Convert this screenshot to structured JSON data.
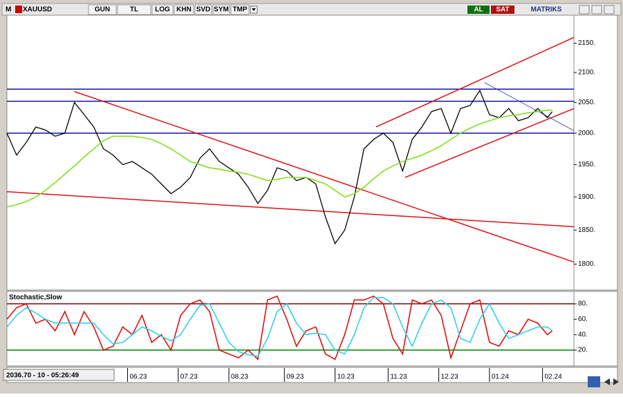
{
  "toolbar": {
    "logo": "M",
    "symbol": "XAUUSD",
    "buttons": [
      "GUN",
      "TL",
      "LOG",
      "KHN",
      "SVD",
      "SYM",
      "TMP"
    ],
    "buy": "AL",
    "sell": "SAT",
    "brand": "MATRIKS"
  },
  "status": "2036.70 - 10 - 05:26:49",
  "chart_data": [
    {
      "type": "line",
      "log_scale": true,
      "x": [
        0,
        4,
        8,
        12,
        16,
        20,
        24,
        28,
        32,
        36,
        40,
        44,
        48,
        52,
        56,
        60,
        64,
        68,
        72,
        76,
        80,
        84,
        88,
        92,
        96,
        100,
        104,
        108,
        112,
        116,
        120,
        124,
        128,
        132,
        136,
        140,
        144,
        148,
        152,
        156,
        160,
        164,
        168,
        172,
        176,
        180,
        184,
        188,
        192,
        196,
        200,
        204,
        208,
        212,
        216,
        220,
        224,
        226
      ],
      "xlim": [
        0,
        235
      ],
      "xticks": [
        {
          "value": 50,
          "label": "06.23"
        },
        {
          "value": 71,
          "label": "07.23"
        },
        {
          "value": 92,
          "label": "08.23"
        },
        {
          "value": 115,
          "label": "09.23"
        },
        {
          "value": 136,
          "label": "10.23"
        },
        {
          "value": 158,
          "label": "11.23"
        },
        {
          "value": 179,
          "label": "12.23"
        },
        {
          "value": 200,
          "label": "01.24"
        },
        {
          "value": 222,
          "label": "02.24"
        }
      ],
      "ylim": [
        1763,
        2199
      ],
      "yticks": [
        {
          "value": 1800,
          "label": "1800."
        },
        {
          "value": 1850,
          "label": "1850."
        },
        {
          "value": 1900,
          "label": "1900."
        },
        {
          "value": 1950,
          "label": "1950."
        },
        {
          "value": 2000,
          "label": "2000."
        },
        {
          "value": 2050,
          "label": "2050."
        },
        {
          "value": 2100,
          "label": "2100."
        },
        {
          "value": 2150,
          "label": "2150."
        }
      ],
      "series": [
        {
          "color": "#000000",
          "values": [
            2000,
            1965,
            1985,
            2010,
            2005,
            1995,
            2000,
            2050,
            2030,
            2010,
            1975,
            1965,
            1950,
            1955,
            1945,
            1935,
            1920,
            1905,
            1915,
            1930,
            1960,
            1975,
            1955,
            1945,
            1935,
            1915,
            1890,
            1910,
            1945,
            1940,
            1925,
            1930,
            1920,
            1870,
            1830,
            1850,
            1900,
            1975,
            1990,
            2000,
            1985,
            1940,
            1990,
            2010,
            2035,
            2040,
            2000,
            2040,
            2045,
            2070,
            2030,
            2025,
            2040,
            2020,
            2025,
            2040,
            2025,
            2035
          ]
        },
        {
          "color": "#7fe020",
          "values": [
            1885,
            1888,
            1893,
            1900,
            1910,
            1922,
            1935,
            1948,
            1962,
            1975,
            1988,
            1995,
            1995,
            1995,
            1993,
            1990,
            1983,
            1975,
            1965,
            1955,
            1950,
            1945,
            1943,
            1940,
            1938,
            1935,
            1930,
            1925,
            1927,
            1930,
            1930,
            1930,
            1925,
            1920,
            1910,
            1900,
            1905,
            1915,
            1928,
            1940,
            1948,
            1955,
            1960,
            1965,
            1972,
            1980,
            1990,
            2000,
            2008,
            2015,
            2020,
            2025,
            2028,
            2030,
            2033,
            2035,
            2037,
            2038
          ]
        }
      ],
      "levels": [
        {
          "value": 2072,
          "color": "#1010a0"
        },
        {
          "value": 2052,
          "color": "#1010a0"
        },
        {
          "value": 2000,
          "color": "#1010a0"
        }
      ],
      "trendlines": [
        {
          "color": "#e01010",
          "x": [
            28,
            235
          ],
          "y": [
            2068,
            1803
          ]
        },
        {
          "color": "#e01010",
          "x": [
            0,
            235
          ],
          "y": [
            1908,
            1855
          ]
        },
        {
          "color": "#e01010",
          "x": [
            153,
            235
          ],
          "y": [
            2010,
            2160
          ]
        },
        {
          "color": "#e01010",
          "x": [
            165,
            235
          ],
          "y": [
            1930,
            2040
          ]
        },
        {
          "color": "#2030d0",
          "x": [
            198,
            235
          ],
          "y": [
            2083,
            2004
          ]
        }
      ]
    },
    {
      "type": "line",
      "title": "Stochastic,Slow",
      "x": [
        0,
        4,
        8,
        12,
        16,
        20,
        24,
        28,
        32,
        36,
        40,
        44,
        48,
        52,
        56,
        60,
        64,
        68,
        72,
        76,
        80,
        84,
        88,
        92,
        96,
        100,
        104,
        108,
        112,
        116,
        120,
        124,
        128,
        132,
        136,
        140,
        144,
        148,
        152,
        156,
        160,
        164,
        168,
        172,
        176,
        180,
        184,
        188,
        192,
        196,
        200,
        204,
        208,
        212,
        216,
        220,
        224,
        226
      ],
      "xlim": [
        0,
        235
      ],
      "ylim": [
        0,
        100
      ],
      "yticks": [
        {
          "value": 20,
          "label": "20."
        },
        {
          "value": 40,
          "label": "40."
        },
        {
          "value": 60,
          "label": "60."
        },
        {
          "value": 80,
          "label": "80."
        }
      ],
      "series": [
        {
          "color": "#e01010",
          "values": [
            60,
            75,
            80,
            55,
            60,
            45,
            70,
            40,
            70,
            50,
            20,
            25,
            50,
            40,
            65,
            30,
            40,
            20,
            65,
            80,
            85,
            70,
            20,
            15,
            10,
            20,
            8,
            85,
            90,
            60,
            25,
            45,
            50,
            15,
            8,
            40,
            85,
            85,
            90,
            80,
            35,
            15,
            85,
            80,
            85,
            65,
            10,
            45,
            80,
            85,
            30,
            25,
            45,
            40,
            60,
            55,
            40,
            45
          ]
        },
        {
          "color": "#30d0e8",
          "values": [
            50,
            65,
            75,
            68,
            60,
            55,
            55,
            55,
            55,
            55,
            40,
            28,
            30,
            40,
            50,
            45,
            38,
            32,
            40,
            60,
            78,
            80,
            55,
            30,
            18,
            14,
            12,
            35,
            70,
            80,
            55,
            40,
            42,
            40,
            20,
            15,
            40,
            75,
            88,
            88,
            80,
            50,
            25,
            55,
            80,
            85,
            75,
            35,
            30,
            60,
            80,
            55,
            35,
            40,
            45,
            50,
            50,
            45
          ]
        }
      ],
      "levels": [
        {
          "value": 80,
          "color": "#800000"
        },
        {
          "value": 20,
          "color": "#008000"
        }
      ]
    }
  ]
}
